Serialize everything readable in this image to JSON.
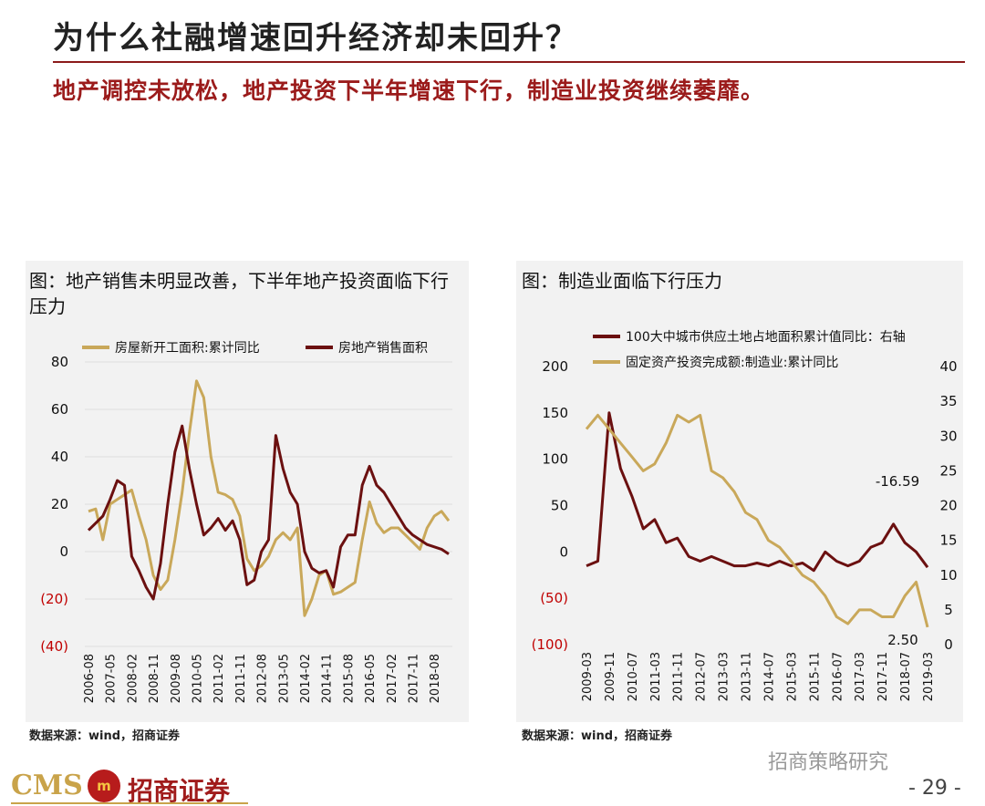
{
  "header": {
    "title": "为什么社融增速回升经济却未回升？",
    "subtitle": "地产调控未放松，地产投资下半年增速下行，制造业投资继续萎靡。"
  },
  "footer": {
    "logo": "CMS",
    "company": "招商证券",
    "watermark": "招商策略研究",
    "page": "- 29 -"
  },
  "chart_data": [
    {
      "type": "line",
      "title": "图：地产销售未明显改善，下半年地产投资面临下行压力",
      "source": "数据来源：wind，招商证券",
      "categories": [
        "2006-08",
        null,
        null,
        "2007-05",
        null,
        null,
        "2008-02",
        null,
        null,
        "2008-11",
        null,
        null,
        "2009-08",
        null,
        null,
        "2010-05",
        null,
        null,
        "2011-02",
        null,
        null,
        "2011-11",
        null,
        null,
        "2012-08",
        null,
        null,
        "2013-05",
        null,
        null,
        "2014-02",
        null,
        null,
        "2014-11",
        null,
        null,
        "2015-08",
        null,
        null,
        "2016-05",
        null,
        null,
        "2017-02",
        null,
        null,
        "2017-11",
        null,
        null,
        "2018-08",
        null,
        null
      ],
      "series": [
        {
          "name": "房屋新开工面积:累计同比",
          "color": "#c9a85a",
          "values": [
            17,
            18,
            5,
            20,
            22,
            24,
            26,
            15,
            5,
            -10,
            -16,
            -12,
            5,
            25,
            50,
            72,
            65,
            40,
            25,
            24,
            22,
            15,
            -3,
            -8,
            -6,
            -2,
            5,
            8,
            5,
            10,
            -27,
            -20,
            -10,
            -8,
            -18,
            -17,
            -15,
            -13,
            5,
            21,
            12,
            8,
            10,
            10,
            7,
            4,
            1,
            10,
            15,
            17,
            13
          ]
        },
        {
          "name": "房地产销售面积",
          "color": "#6b1010",
          "values": [
            9,
            12,
            15,
            22,
            30,
            28,
            -2,
            -8,
            -15,
            -20,
            -5,
            20,
            42,
            53,
            35,
            20,
            7,
            10,
            14,
            9,
            13,
            5,
            -14,
            -12,
            0,
            5,
            49,
            35,
            25,
            20,
            0,
            -7,
            -9,
            -8,
            -15,
            2,
            7,
            7,
            28,
            36,
            28,
            25,
            20,
            15,
            10,
            7,
            5,
            3,
            2,
            1,
            -1
          ]
        }
      ],
      "ylim": [
        -40,
        80
      ],
      "yticks": [
        {
          "value": -40,
          "label": "(40)"
        },
        {
          "value": -20,
          "label": "(20)"
        },
        0,
        20,
        40,
        60,
        80
      ],
      "negative_tick_color": "#c00000",
      "grid": true,
      "legend": "top"
    },
    {
      "type": "line",
      "title": "图：制造业面临下行压力",
      "source": "数据来源：wind，招商证券",
      "categories": [
        "2009-03",
        null,
        "2009-11",
        null,
        "2010-07",
        null,
        "2011-03",
        null,
        "2011-11",
        null,
        "2012-07",
        null,
        "2013-03",
        null,
        "2013-11",
        null,
        "2014-07",
        null,
        "2015-03",
        null,
        "2015-11",
        null,
        "2016-07",
        null,
        "2017-03",
        null,
        "2017-11",
        null,
        "2018-07",
        null,
        "2019-03"
      ],
      "series": [
        {
          "name": "100大中城市供应土地占地面积累计值同比：右轴",
          "color": "#6b1010",
          "values": [
            -15,
            -10,
            150,
            90,
            60,
            25,
            35,
            10,
            15,
            -5,
            -10,
            -5,
            -10,
            -15,
            -15,
            -12,
            -15,
            -10,
            -15,
            -12,
            -20,
            0,
            -10,
            -15,
            -10,
            5,
            10,
            30,
            10,
            0,
            -16.59
          ]
        },
        {
          "name": "固定资产投资完成额:制造业:累计同比",
          "color": "#c9a85a",
          "axis": "y2",
          "values": [
            31,
            33,
            31,
            29,
            27,
            25,
            26,
            29,
            33,
            32,
            33,
            25,
            24,
            22,
            19,
            18,
            15,
            14,
            12,
            10,
            9,
            7,
            4,
            3,
            5,
            5,
            4,
            4,
            7,
            9,
            2.5
          ]
        }
      ],
      "annotations": [
        "-16.59",
        "2.50"
      ],
      "ylim": [
        -100,
        200
      ],
      "yticks": [
        {
          "value": -100,
          "label": "(100)"
        },
        {
          "value": -50,
          "label": "(50)"
        },
        0,
        50,
        100,
        150,
        200
      ],
      "y2lim": [
        0,
        40
      ],
      "y2ticks": [
        0,
        5,
        10,
        15,
        20,
        25,
        30,
        35,
        40
      ],
      "negative_tick_color": "#c00000",
      "grid": false,
      "legend": "top"
    }
  ]
}
